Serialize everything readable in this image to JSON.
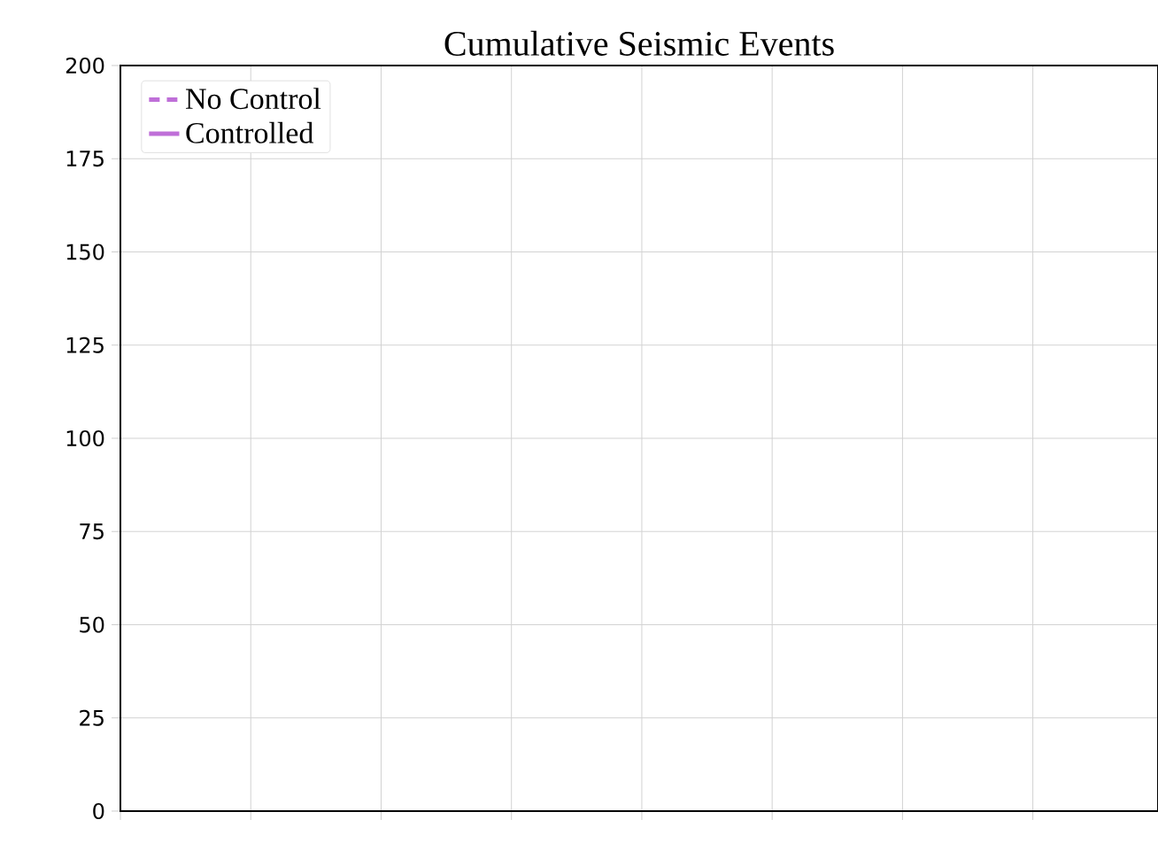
{
  "chart_data": {
    "type": "line",
    "title": "Cumulative Seismic Events",
    "categories": [
      null,
      null,
      null,
      null,
      null,
      null,
      null,
      null
    ],
    "series": [
      {
        "name": "No Control",
        "color": "#bf6fd8",
        "line_style": "dashed",
        "values": [
          null,
          null,
          null,
          null,
          null,
          null,
          null,
          null
        ]
      },
      {
        "name": "Controlled",
        "color": "#bf6fd8",
        "line_style": "solid",
        "values": [
          null,
          null,
          null,
          null,
          null,
          null,
          null,
          null
        ]
      }
    ],
    "ylim": [
      0,
      200
    ],
    "yticks": [
      0,
      25,
      50,
      75,
      100,
      125,
      150,
      175,
      200
    ],
    "grid": true,
    "legend": "top left",
    "tick_labels": "y"
  }
}
